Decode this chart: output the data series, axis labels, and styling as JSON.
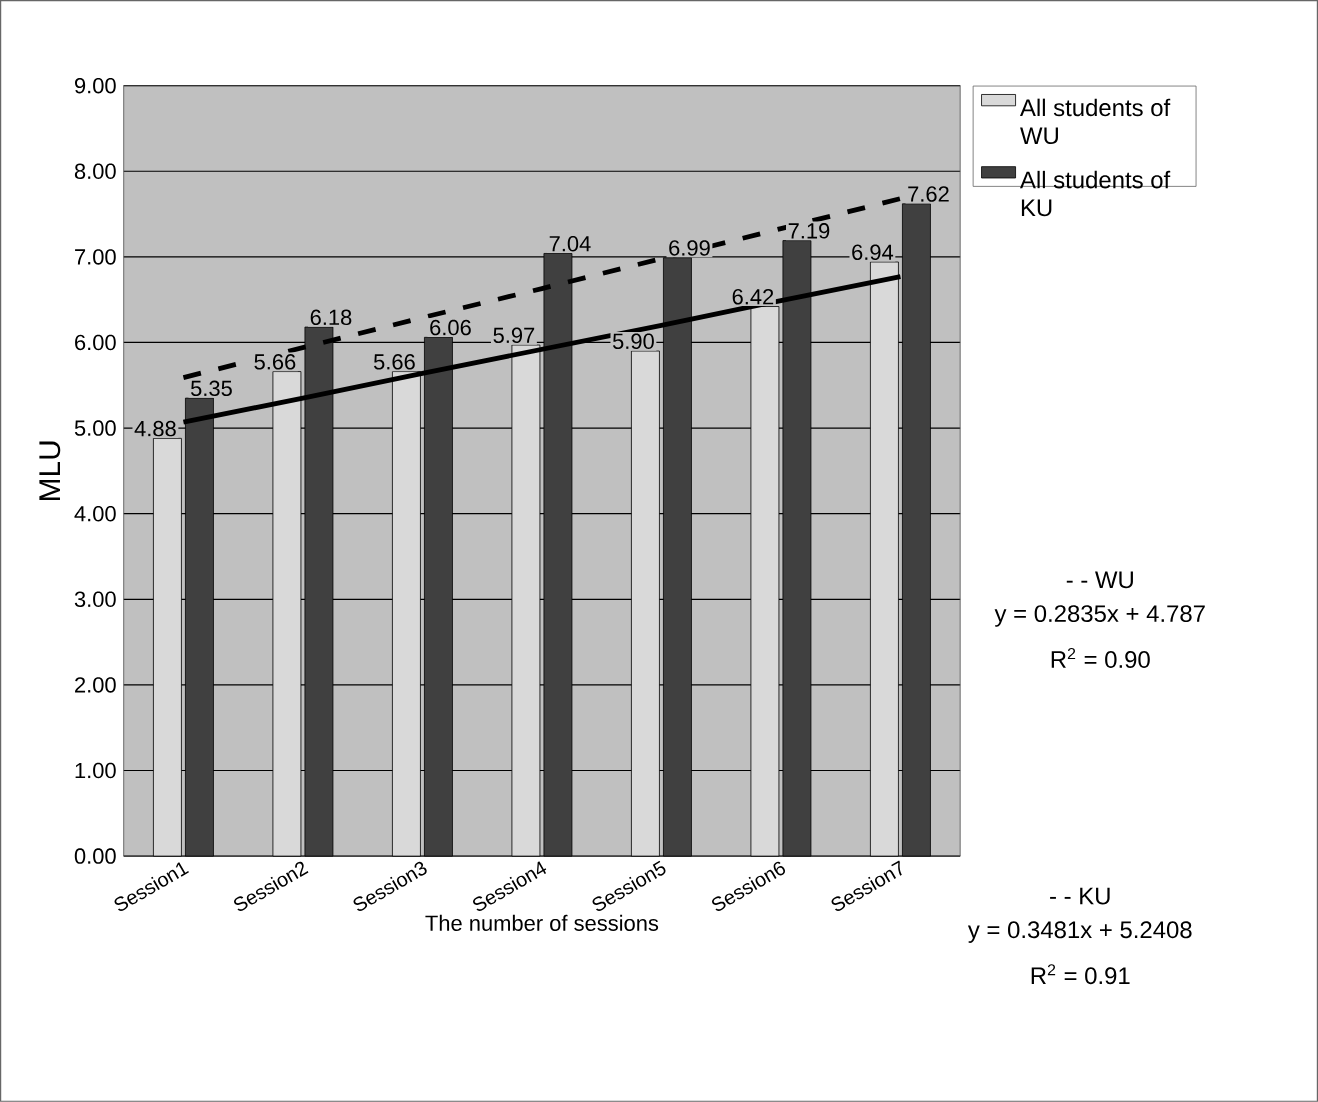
{
  "chart_data": {
    "type": "bar",
    "xlabel": "The number of sessions",
    "ylabel": "MLU",
    "categories": [
      "Session1",
      "Session2",
      "Session3",
      "Session4",
      "Session5",
      "Session6",
      "Session7"
    ],
    "series": [
      {
        "name": "All students of WU",
        "color": "#d9d9d9",
        "values": [
          4.88,
          5.66,
          5.66,
          5.97,
          5.9,
          6.42,
          6.94
        ],
        "value_labels": [
          "4.88",
          "5.66",
          "5.66",
          "5.97",
          "5.90",
          "6.42",
          "6.94"
        ]
      },
      {
        "name": "All students of KU",
        "color": "#404040",
        "values": [
          5.35,
          6.18,
          6.06,
          7.04,
          6.99,
          7.19,
          7.62
        ],
        "value_labels": [
          "5.35",
          "6.18",
          "6.06",
          "7.04",
          "6.99",
          "7.19",
          "7.62"
        ]
      },
      {
        "type": "line",
        "color": "#000000",
        "line_style": "solid",
        "values": [
          5.07,
          5.35,
          5.64,
          5.92,
          6.2,
          6.49,
          6.77
        ]
      },
      {
        "type": "line",
        "color": "#000000",
        "line_style": "dashed",
        "values": [
          5.59,
          5.94,
          6.29,
          6.63,
          6.98,
          7.33,
          7.68
        ]
      }
    ],
    "ylim": [
      0,
      9
    ],
    "yticks": [
      {
        "value": 0,
        "label": "0.00"
      },
      {
        "value": 1,
        "label": "1.00"
      },
      {
        "value": 2,
        "label": "2.00"
      },
      {
        "value": 3,
        "label": "3.00"
      },
      {
        "value": 4,
        "label": "4.00"
      },
      {
        "value": 5,
        "label": "5.00"
      },
      {
        "value": 6,
        "label": "6.00"
      },
      {
        "value": 7,
        "label": "7.00"
      },
      {
        "value": 8,
        "label": "8.00"
      },
      {
        "value": 9,
        "label": "9.00"
      }
    ],
    "grid": "y",
    "legend": "right",
    "annotations": [
      "- - WU",
      "y = 0.2835x + 4.787",
      "R$^{2}$ = 0.90",
      "- - KU",
      "y = 0.3481x + 5.2408",
      "R$^{2}$ = 0.91"
    ]
  }
}
